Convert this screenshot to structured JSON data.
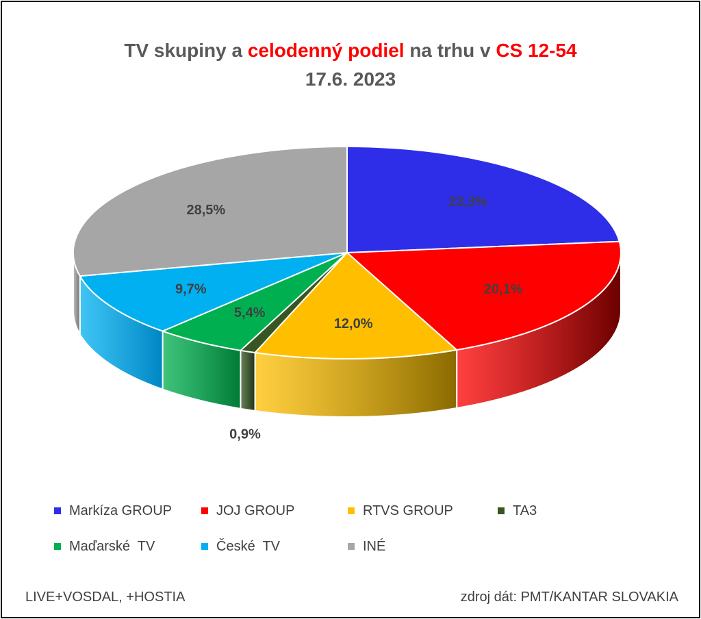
{
  "title": {
    "part1": "TV skupiny a ",
    "part2": "celodenný podiel",
    "part3": " na trhu v ",
    "part4": "CS 12-54",
    "line2": "17.6. 2023"
  },
  "chart_data": {
    "type": "pie",
    "style": "3d",
    "categories": [
      "Markíza GROUP",
      "JOJ GROUP",
      "RTVS GROUP",
      "TA3",
      "Maďarské  TV",
      "České  TV",
      "INÉ"
    ],
    "values": [
      23.3,
      20.1,
      12.0,
      0.9,
      5.4,
      9.7,
      28.5
    ],
    "labels": [
      "23,3%",
      "20,1%",
      "12,0%",
      "0,9%",
      "5,4%",
      "9,7%",
      "28,5%"
    ],
    "colors": [
      "#2e2ee8",
      "#ff0000",
      "#ffbf00",
      "#375623",
      "#00b050",
      "#00b0f0",
      "#a6a6a6"
    ],
    "side_colors": [
      "#1a1a8c",
      "#6b0000",
      "#8a6a00",
      "#1e3313",
      "#007a36",
      "#0086c4",
      "#6e6e6e"
    ],
    "legend_position": "bottom"
  },
  "footer": {
    "left": "LIVE+VOSDAL, +HOSTIA",
    "right": "zdroj dát: PMT/KANTAR SLOVAKIA"
  }
}
